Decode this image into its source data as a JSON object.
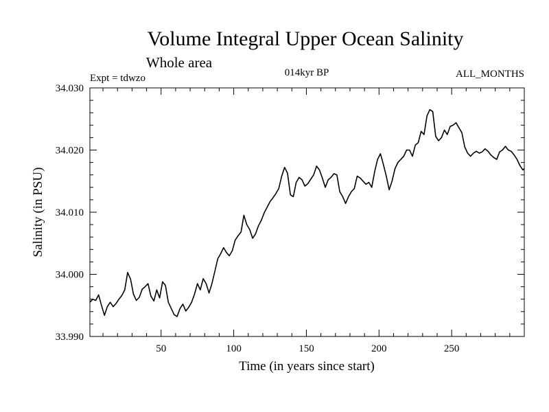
{
  "chart_data": {
    "type": "line",
    "title": "Volume Integral Upper Ocean Salinity",
    "subtitle": "Whole area",
    "annotations": {
      "left": "Expt = tdwzo",
      "center": "014kyr BP",
      "right": "ALL_MONTHS"
    },
    "xlabel": "Time (in years since start)",
    "ylabel": "Salinity (in PSU)",
    "xlim": [
      1,
      300
    ],
    "ylim": [
      33.99,
      34.03
    ],
    "x_ticks": [
      50,
      100,
      150,
      200,
      250
    ],
    "x_tick_labels": [
      "50",
      "100",
      "150",
      "200",
      "250"
    ],
    "y_ticks": [
      33.99,
      34.0,
      34.01,
      34.02,
      34.03
    ],
    "y_tick_labels": [
      "33.990",
      "34.000",
      "34.010",
      "34.020",
      "34.030"
    ],
    "grid": false,
    "line_color": "#000000",
    "series": [
      {
        "x": [
          1,
          3,
          5,
          7,
          9,
          11,
          13,
          15,
          17,
          19,
          21,
          23,
          25,
          27,
          29,
          31,
          33,
          35,
          37,
          39,
          41,
          43,
          45,
          47,
          49,
          51,
          53,
          55,
          57,
          59,
          61,
          63,
          65,
          67,
          69,
          71,
          73,
          75,
          77,
          79,
          81,
          83,
          85,
          87,
          89,
          91,
          93,
          95,
          97,
          99,
          101,
          103,
          105,
          107,
          109,
          111,
          113,
          115,
          117,
          119,
          121,
          123,
          125,
          127,
          129,
          131,
          133,
          135,
          137,
          139,
          141,
          143,
          145,
          147,
          149,
          151,
          153,
          155,
          157,
          159,
          161,
          163,
          165,
          167,
          169,
          171,
          173,
          175,
          177,
          179,
          181,
          183,
          185,
          187,
          189,
          191,
          193,
          195,
          197,
          199,
          201,
          203,
          205,
          207,
          209,
          211,
          213,
          215,
          217,
          219,
          221,
          223,
          225,
          227,
          229,
          231,
          233,
          235,
          237,
          239,
          241,
          243,
          245,
          247,
          249,
          251,
          253,
          255,
          257,
          259,
          261,
          263,
          265,
          267,
          269,
          271,
          273,
          275,
          277,
          279,
          281,
          283,
          285,
          287,
          289,
          291,
          293,
          295,
          297,
          299,
          300
        ],
        "values": [
          33.9955,
          33.996,
          33.9958,
          33.9967,
          33.995,
          33.9934,
          33.9948,
          33.9955,
          33.9948,
          33.9953,
          33.996,
          33.9966,
          33.9975,
          34.0003,
          33.9992,
          33.9968,
          33.9958,
          33.9963,
          33.9976,
          33.998,
          33.9985,
          33.9965,
          33.9957,
          33.9975,
          33.9962,
          33.9988,
          33.9982,
          33.9955,
          33.9945,
          33.9935,
          33.9932,
          33.9945,
          33.9952,
          33.9941,
          33.9947,
          33.9955,
          33.9968,
          33.9985,
          33.9975,
          33.9993,
          33.9985,
          33.997,
          33.9985,
          34.0005,
          34.0025,
          34.0033,
          34.0043,
          34.0035,
          34.003,
          34.0038,
          34.0055,
          34.0062,
          34.0068,
          34.0095,
          34.008,
          34.0072,
          34.0058,
          34.0065,
          34.0078,
          34.0087,
          34.0099,
          34.0108,
          34.0117,
          34.0123,
          34.013,
          34.0138,
          34.0158,
          34.0172,
          34.0163,
          34.0128,
          34.0125,
          34.0148,
          34.0156,
          34.0152,
          34.0142,
          34.0146,
          34.0153,
          34.016,
          34.0174,
          34.0168,
          34.0155,
          34.014,
          34.0152,
          34.0156,
          34.0162,
          34.016,
          34.0133,
          34.0125,
          34.0114,
          34.0125,
          34.0133,
          34.0138,
          34.0158,
          34.0155,
          34.015,
          34.0145,
          34.0148,
          34.014,
          34.0165,
          34.0185,
          34.0194,
          34.0177,
          34.0158,
          34.0136,
          34.015,
          34.017,
          34.018,
          34.0185,
          34.019,
          34.02,
          34.02,
          34.019,
          34.0208,
          34.0212,
          34.023,
          34.0225,
          34.0255,
          34.0265,
          34.0262,
          34.0222,
          34.0215,
          34.022,
          34.0232,
          34.0225,
          34.0238,
          34.024,
          34.0244,
          34.0236,
          34.0228,
          34.0205,
          34.0195,
          34.019,
          34.0195,
          34.0198,
          34.0195,
          34.0197,
          34.0202,
          34.0198,
          34.0192,
          34.0188,
          34.0185,
          34.0197,
          34.02,
          34.0206,
          34.02,
          34.0198,
          34.0192,
          34.0185,
          34.0175,
          34.0168,
          34.017
        ]
      }
    ]
  }
}
